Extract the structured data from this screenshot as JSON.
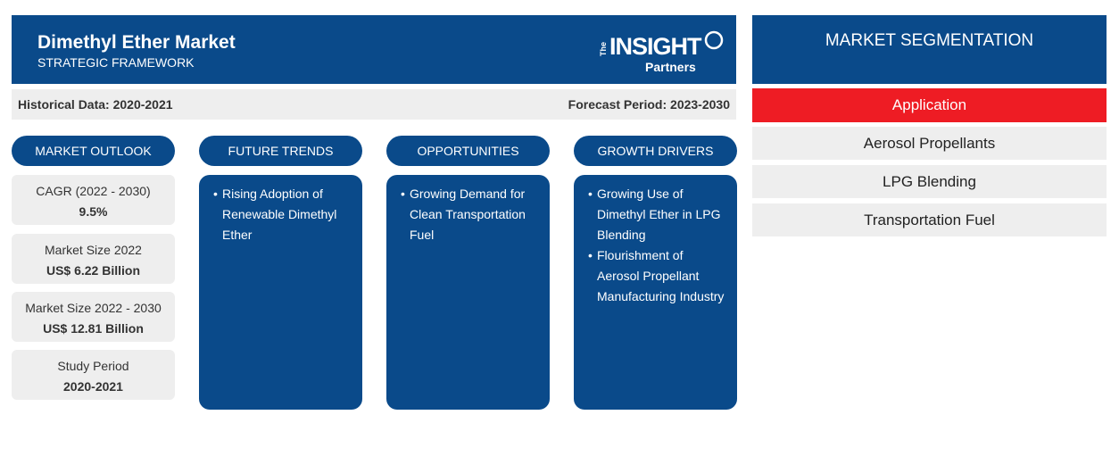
{
  "header": {
    "title": "Dimethyl Ether Market",
    "subtitle": "STRATEGIC FRAMEWORK",
    "logo": {
      "the": "The",
      "insight": "INSIGHT",
      "partners": "Partners"
    }
  },
  "period": {
    "historical": "Historical Data: 2020-2021",
    "forecast": "Forecast Period: 2023-2030"
  },
  "columns": [
    {
      "heading": "MARKET OUTLOOK"
    },
    {
      "heading": "FUTURE TRENDS",
      "bullets": [
        "Rising Adoption of Renewable Dimethyl Ether"
      ]
    },
    {
      "heading": "OPPORTUNITIES",
      "bullets": [
        "Growing Demand for Clean Transportation Fuel"
      ]
    },
    {
      "heading": "GROWTH DRIVERS",
      "bullets": [
        "Growing Use of Dimethyl Ether in LPG Blending",
        "Flourishment of Aerosol Propellant Manufacturing Industry"
      ]
    }
  ],
  "outlook": [
    {
      "label": "CAGR (2022 - 2030)",
      "value": "9.5%"
    },
    {
      "label": "Market Size 2022",
      "value": "US$ 6.22 Billion"
    },
    {
      "label": "Market Size 2022 - 2030",
      "value": "US$ 12.81 Billion"
    },
    {
      "label": "Study Period",
      "value": "2020-2021"
    }
  ],
  "segmentation": {
    "title": "MARKET SEGMENTATION",
    "category": "Application",
    "items": [
      "Aerosol Propellants",
      "LPG Blending",
      "Transportation Fuel"
    ]
  },
  "colors": {
    "navy": "#0a4a8a",
    "red": "#ee1c24",
    "gray": "#eeeeee"
  }
}
